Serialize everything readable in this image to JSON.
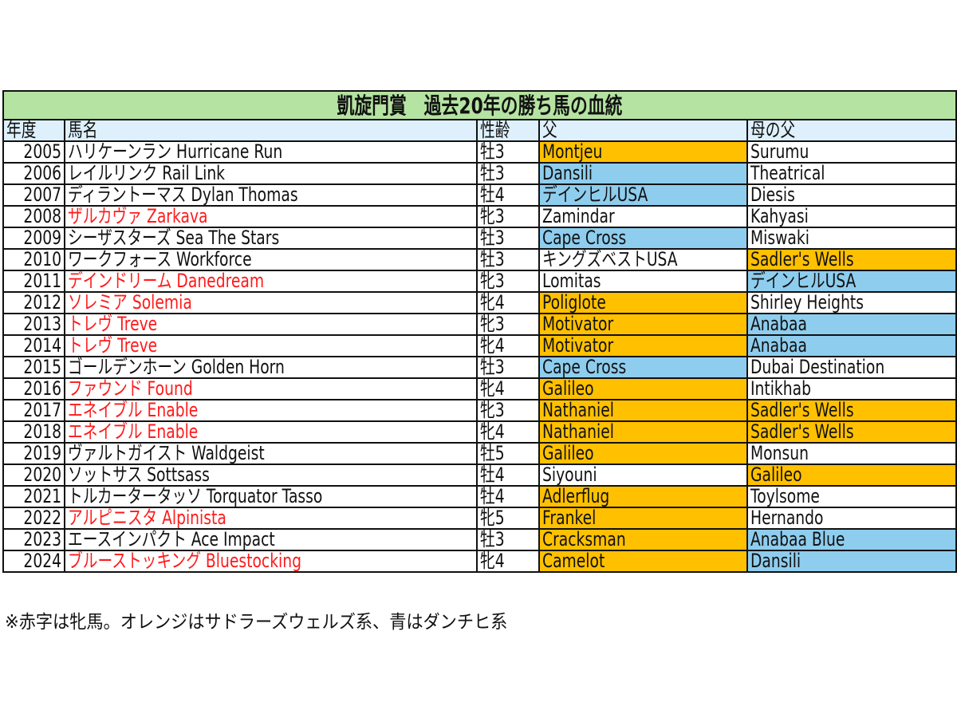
{
  "title": "凱旋門賞　過去20年の勝ち馬の血統",
  "headers": {
    "year": "年度",
    "name": "馬名",
    "sex_age": "性齢",
    "sire": "父",
    "damsire": "母の父"
  },
  "colors": {
    "title_bg": "#b5e3a1",
    "header_bg": "#ddf0fb",
    "sadlers_wells_line": "#ffc000",
    "danehill_line": "#8ecdee",
    "filly_text": "#ff1a1a"
  },
  "rows": [
    {
      "year": "2005",
      "name": "ハリケーンラン Hurricane Run",
      "filly": false,
      "sex_age": "牡3",
      "sire": "Montjeu",
      "sire_line": "orange",
      "damsire": "Surumu",
      "damsire_line": "none"
    },
    {
      "year": "2006",
      "name": "レイルリンク Rail Link",
      "filly": false,
      "sex_age": "牡3",
      "sire": "Dansili",
      "sire_line": "blue",
      "damsire": "Theatrical",
      "damsire_line": "none"
    },
    {
      "year": "2007",
      "name": "ディラントーマス Dylan Thomas",
      "filly": false,
      "sex_age": "牡4",
      "sire": "デインヒルUSA",
      "sire_line": "blue",
      "damsire": "Diesis",
      "damsire_line": "none"
    },
    {
      "year": "2008",
      "name": "ザルカヴァ Zarkava",
      "filly": true,
      "sex_age": "牝3",
      "sire": "Zamindar",
      "sire_line": "none",
      "damsire": "Kahyasi",
      "damsire_line": "none"
    },
    {
      "year": "2009",
      "name": "シーザスターズ Sea The Stars",
      "filly": false,
      "sex_age": "牡3",
      "sire": "Cape Cross",
      "sire_line": "blue",
      "damsire": "Miswaki",
      "damsire_line": "none"
    },
    {
      "year": "2010",
      "name": "ワークフォース Workforce",
      "filly": false,
      "sex_age": "牡3",
      "sire": "キングズベストUSA",
      "sire_line": "none",
      "damsire": "Sadler's Wells",
      "damsire_line": "orange"
    },
    {
      "year": "2011",
      "name": "デインドリーム Danedream",
      "filly": true,
      "sex_age": "牝3",
      "sire": "Lomitas",
      "sire_line": "none",
      "damsire": "デインヒルUSA",
      "damsire_line": "blue"
    },
    {
      "year": "2012",
      "name": "ソレミア Solemia",
      "filly": true,
      "sex_age": "牝4",
      "sire": "Poliglote",
      "sire_line": "orange",
      "damsire": "Shirley Heights",
      "damsire_line": "none"
    },
    {
      "year": "2013",
      "name": "トレヴ Treve",
      "filly": true,
      "sex_age": "牝3",
      "sire": "Motivator",
      "sire_line": "orange",
      "damsire": "Anabaa",
      "damsire_line": "blue"
    },
    {
      "year": "2014",
      "name": "トレヴ Treve",
      "filly": true,
      "sex_age": "牝4",
      "sire": "Motivator",
      "sire_line": "orange",
      "damsire": "Anabaa",
      "damsire_line": "blue"
    },
    {
      "year": "2015",
      "name": "ゴールデンホーン Golden Horn",
      "filly": false,
      "sex_age": "牡3",
      "sire": "Cape Cross",
      "sire_line": "blue",
      "damsire": "Dubai Destination",
      "damsire_line": "none"
    },
    {
      "year": "2016",
      "name": "ファウンド Found",
      "filly": true,
      "sex_age": "牝4",
      "sire": "Galileo",
      "sire_line": "orange",
      "damsire": "Intikhab",
      "damsire_line": "none"
    },
    {
      "year": "2017",
      "name": "エネイブル Enable",
      "filly": true,
      "sex_age": "牝3",
      "sire": "Nathaniel",
      "sire_line": "orange",
      "damsire": "Sadler's Wells",
      "damsire_line": "orange"
    },
    {
      "year": "2018",
      "name": "エネイブル Enable",
      "filly": true,
      "sex_age": "牝4",
      "sire": "Nathaniel",
      "sire_line": "orange",
      "damsire": "Sadler's Wells",
      "damsire_line": "orange"
    },
    {
      "year": "2019",
      "name": "ヴァルトガイスト Waldgeist",
      "filly": false,
      "sex_age": "牡5",
      "sire": "Galileo",
      "sire_line": "orange",
      "damsire": "Monsun",
      "damsire_line": "none"
    },
    {
      "year": "2020",
      "name": "ソットサス Sottsass",
      "filly": false,
      "sex_age": "牡4",
      "sire": "Siyouni",
      "sire_line": "none",
      "damsire": "Galileo",
      "damsire_line": "orange"
    },
    {
      "year": "2021",
      "name": "トルカータータッソ Torquator Tasso",
      "filly": false,
      "sex_age": "牡4",
      "sire": "Adlerflug",
      "sire_line": "orange",
      "damsire": "Toylsome",
      "damsire_line": "none"
    },
    {
      "year": "2022",
      "name": "アルピニスタ Alpinista",
      "filly": true,
      "sex_age": "牝5",
      "sire": "Frankel",
      "sire_line": "orange",
      "damsire": "Hernando",
      "damsire_line": "none"
    },
    {
      "year": "2023",
      "name": "エースインパクト Ace Impact",
      "filly": false,
      "sex_age": "牡3",
      "sire": "Cracksman",
      "sire_line": "orange",
      "damsire": "Anabaa Blue",
      "damsire_line": "blue"
    },
    {
      "year": "2024",
      "name": "ブルーストッキング Bluestocking",
      "filly": true,
      "sex_age": "牝4",
      "sire": "Camelot",
      "sire_line": "orange",
      "damsire": "Dansili",
      "damsire_line": "blue"
    }
  ],
  "note": "※赤字は牝馬。オレンジはサドラーズウェルズ系、青はダンチヒ系"
}
